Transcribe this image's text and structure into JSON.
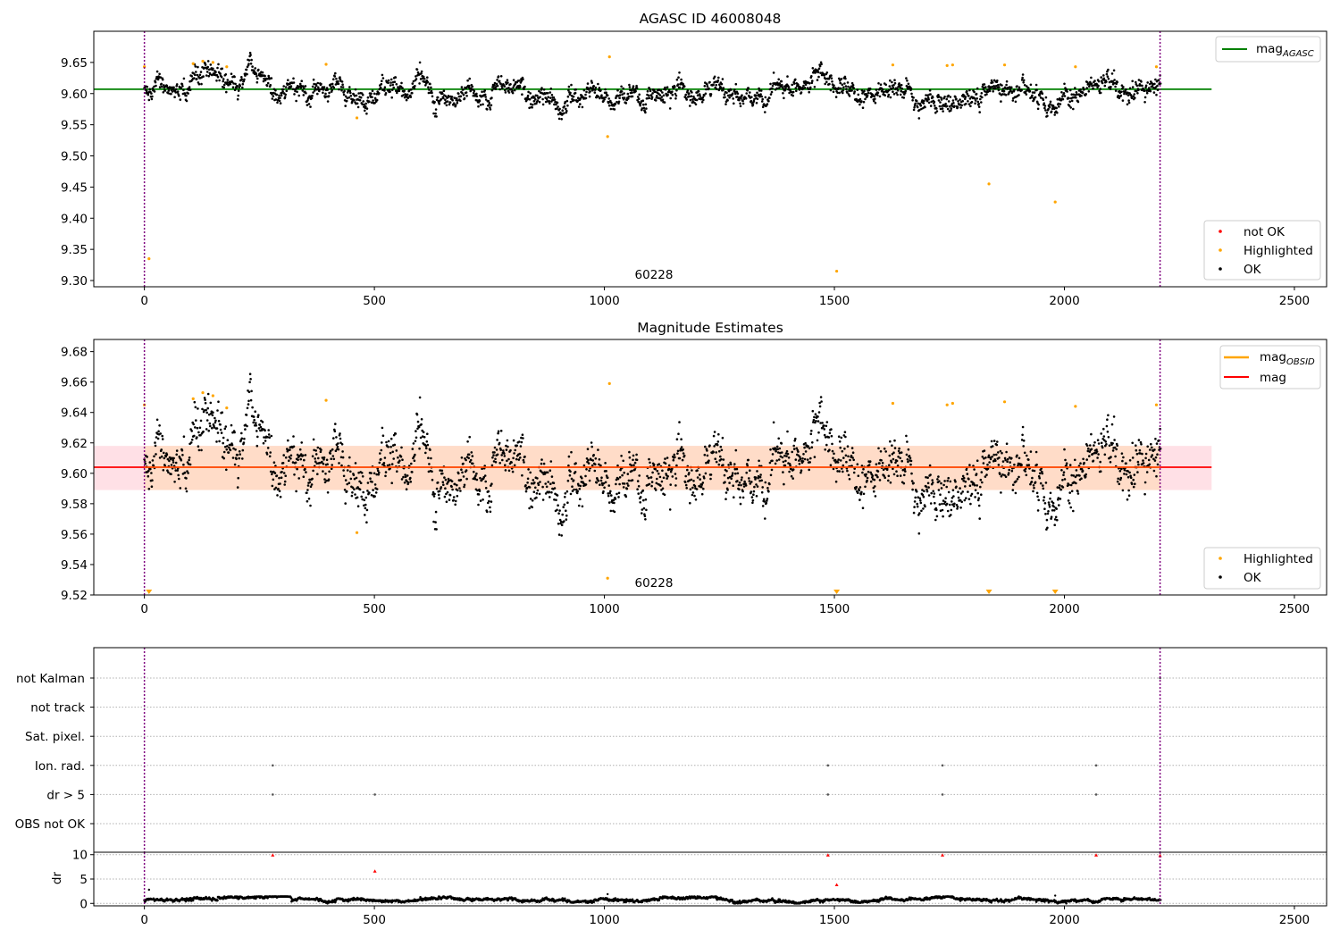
{
  "colors": {
    "ok": "#000000",
    "not_ok": "#ff0000",
    "highlighted": "#ffa500",
    "mag_agasc_line": "#008000",
    "mag_line": "#ff0000",
    "mag_obsid_line": "#ffa500",
    "band_pink": "#ffe0e6",
    "band_orange": "#ffdcc8",
    "obsid_boundary": "#800080",
    "grid": "#b0b0b0"
  },
  "chart_data": [
    {
      "type": "scatter",
      "id": "top",
      "title": "AGASC ID 46008048",
      "xlim": [
        -110,
        2570
      ],
      "ylim": [
        9.29,
        9.7
      ],
      "x_ticks": [
        0,
        500,
        1000,
        1500,
        2000,
        2500
      ],
      "y_ticks": [
        9.3,
        9.35,
        9.4,
        9.45,
        9.5,
        9.55,
        9.6,
        9.65
      ],
      "y_tick_labels": [
        "9.30",
        "9.35",
        "9.40",
        "9.45",
        "9.50",
        "9.55",
        "9.60",
        "9.65"
      ],
      "x_tick_labels": [
        "0",
        "500",
        "1000",
        "1500",
        "2000",
        "2500"
      ],
      "obsid_boundaries": [
        0,
        2208
      ],
      "obsid_label": "60228",
      "obsid_label_x": 1104,
      "mag_agasc": 9.607,
      "mag_agasc_xrange": [
        -110,
        2320
      ],
      "ok_series": {
        "n": 2210,
        "center": 9.604,
        "spread": 0.013
      },
      "highlighted": [
        {
          "x": 0,
          "y": 9.643
        },
        {
          "x": 10,
          "y": 9.335
        },
        {
          "x": 106,
          "y": 9.648
        },
        {
          "x": 127,
          "y": 9.652
        },
        {
          "x": 149,
          "y": 9.65
        },
        {
          "x": 179,
          "y": 9.643
        },
        {
          "x": 395,
          "y": 9.647
        },
        {
          "x": 462,
          "y": 9.561
        },
        {
          "x": 1007,
          "y": 9.531
        },
        {
          "x": 1011,
          "y": 9.659
        },
        {
          "x": 1505,
          "y": 9.315
        },
        {
          "x": 1627,
          "y": 9.646
        },
        {
          "x": 1745,
          "y": 9.645
        },
        {
          "x": 1757,
          "y": 9.646
        },
        {
          "x": 1836,
          "y": 9.455
        },
        {
          "x": 1870,
          "y": 9.646
        },
        {
          "x": 1980,
          "y": 9.426
        },
        {
          "x": 2024,
          "y": 9.643
        },
        {
          "x": 2200,
          "y": 9.643
        }
      ],
      "legend_top": [
        {
          "label": "mag",
          "sub": "AGASC",
          "kind": "line",
          "color": "#008000"
        }
      ],
      "legend_bottom": [
        {
          "label": "not OK",
          "kind": "dot",
          "color": "#ff0000"
        },
        {
          "label": "Highlighted",
          "kind": "dot",
          "color": "#ffa500"
        },
        {
          "label": "OK",
          "kind": "dot",
          "color": "#000000"
        }
      ]
    },
    {
      "type": "scatter",
      "id": "mid",
      "title": "Magnitude Estimates",
      "xlim": [
        -110,
        2570
      ],
      "ylim": [
        9.52,
        9.688
      ],
      "x_ticks": [
        0,
        500,
        1000,
        1500,
        2000,
        2500
      ],
      "y_ticks": [
        9.52,
        9.54,
        9.56,
        9.58,
        9.6,
        9.62,
        9.64,
        9.66,
        9.68
      ],
      "y_tick_labels": [
        "9.52",
        "9.54",
        "9.56",
        "9.58",
        "9.60",
        "9.62",
        "9.64",
        "9.66",
        "9.68"
      ],
      "x_tick_labels": [
        "0",
        "500",
        "1000",
        "1500",
        "2000",
        "2500"
      ],
      "obsid_boundaries": [
        0,
        2208
      ],
      "obsid_label": "60228",
      "obsid_label_x": 1104,
      "mag": 9.604,
      "mag_xrange": [
        -110,
        2320
      ],
      "mag_band": [
        9.589,
        9.618
      ],
      "mag_obsid": 9.604,
      "mag_obsid_xrange": [
        0,
        2208
      ],
      "ok_series": {
        "n": 2210,
        "center": 9.604,
        "spread": 0.013
      },
      "highlighted": [
        {
          "x": 0,
          "y": 9.645
        },
        {
          "x": 106,
          "y": 9.649
        },
        {
          "x": 127,
          "y": 9.653
        },
        {
          "x": 149,
          "y": 9.651
        },
        {
          "x": 179,
          "y": 9.643
        },
        {
          "x": 395,
          "y": 9.648
        },
        {
          "x": 462,
          "y": 9.561
        },
        {
          "x": 1007,
          "y": 9.531
        },
        {
          "x": 1011,
          "y": 9.659
        },
        {
          "x": 1627,
          "y": 9.646
        },
        {
          "x": 1745,
          "y": 9.645
        },
        {
          "x": 1757,
          "y": 9.646
        },
        {
          "x": 1870,
          "y": 9.647
        },
        {
          "x": 2024,
          "y": 9.644
        },
        {
          "x": 2200,
          "y": 9.645
        }
      ],
      "below_range": [
        10,
        1505,
        1836,
        1980
      ],
      "legend_top": [
        {
          "label": "mag",
          "sub": "OBSID",
          "kind": "line",
          "color": "#ffa500"
        },
        {
          "label": "mag",
          "kind": "line",
          "color": "#ff0000"
        }
      ],
      "legend_bottom": [
        {
          "label": "Highlighted",
          "kind": "dot",
          "color": "#ffa500"
        },
        {
          "label": "OK",
          "kind": "dot",
          "color": "#000000"
        }
      ]
    },
    {
      "type": "scatter",
      "id": "flags",
      "xlim": [
        -110,
        2570
      ],
      "categories": [
        "not Kalman",
        "not track",
        "Sat. pixel.",
        "Ion. rad.",
        "dr > 5",
        "OBS not OK"
      ],
      "flag_points": {
        "Ion. rad.": [
          279,
          1486,
          1735,
          2069
        ],
        "dr > 5": [
          279,
          501,
          1486,
          1735,
          2069
        ],
        "not Kalman": [
          2208
        ]
      },
      "obsid_boundaries": [
        0,
        2208
      ]
    },
    {
      "type": "scatter",
      "id": "dr",
      "ylabel": "dr",
      "xlim": [
        -110,
        2570
      ],
      "ylim": [
        -0.5,
        10.5
      ],
      "x_ticks": [
        0,
        500,
        1000,
        1500,
        2000,
        2500
      ],
      "x_tick_labels": [
        "0",
        "500",
        "1000",
        "1500",
        "2000",
        "2500"
      ],
      "y_ticks": [
        0,
        5,
        10
      ],
      "y_tick_labels": [
        "0",
        "5",
        "10"
      ],
      "obsid_boundaries": [
        0,
        2208
      ],
      "dr_series": {
        "n": 2210,
        "baseline": 0.55
      },
      "red_points": [
        {
          "x": 279,
          "y": 9.9
        },
        {
          "x": 501,
          "y": 6.6
        },
        {
          "x": 1486,
          "y": 9.9
        },
        {
          "x": 1505,
          "y": 3.8
        },
        {
          "x": 1735,
          "y": 9.9
        },
        {
          "x": 2069,
          "y": 9.9
        },
        {
          "x": 2208,
          "y": 9.8
        }
      ],
      "black_outliers": [
        {
          "x": 10,
          "y": 2.8
        },
        {
          "x": 1007,
          "y": 1.9
        },
        {
          "x": 1980,
          "y": 1.6
        }
      ]
    }
  ]
}
